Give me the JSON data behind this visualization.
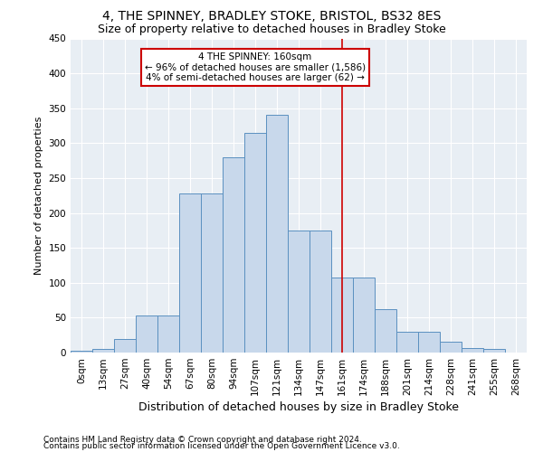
{
  "title": "4, THE SPINNEY, BRADLEY STOKE, BRISTOL, BS32 8ES",
  "subtitle": "Size of property relative to detached houses in Bradley Stoke",
  "xlabel": "Distribution of detached houses by size in Bradley Stoke",
  "ylabel": "Number of detached properties",
  "footnote1": "Contains HM Land Registry data © Crown copyright and database right 2024.",
  "footnote2": "Contains public sector information licensed under the Open Government Licence v3.0.",
  "categories": [
    "0sqm",
    "13sqm",
    "27sqm",
    "40sqm",
    "54sqm",
    "67sqm",
    "80sqm",
    "94sqm",
    "107sqm",
    "121sqm",
    "134sqm",
    "147sqm",
    "161sqm",
    "174sqm",
    "188sqm",
    "201sqm",
    "214sqm",
    "228sqm",
    "241sqm",
    "255sqm",
    "268sqm"
  ],
  "values": [
    2,
    5,
    20,
    53,
    53,
    228,
    228,
    280,
    315,
    340,
    175,
    175,
    108,
    108,
    62,
    30,
    30,
    15,
    7,
    5,
    0
  ],
  "bar_color": "#c8d8eb",
  "bar_edge_color": "#5b90c0",
  "vline_x_index": 12,
  "vline_color": "#cc0000",
  "annotation_text": "4 THE SPINNEY: 160sqm\n← 96% of detached houses are smaller (1,586)\n4% of semi-detached houses are larger (62) →",
  "annotation_box_color": "#cc0000",
  "annotation_box_facecolor": "white",
  "ylim": [
    0,
    450
  ],
  "yticks": [
    0,
    50,
    100,
    150,
    200,
    250,
    300,
    350,
    400,
    450
  ],
  "bg_color": "#e8eef4",
  "grid_color": "white",
  "title_fontsize": 10,
  "subtitle_fontsize": 9,
  "xlabel_fontsize": 9,
  "ylabel_fontsize": 8,
  "tick_fontsize": 7.5,
  "annot_fontsize": 7.5,
  "footnote_fontsize": 6.5
}
